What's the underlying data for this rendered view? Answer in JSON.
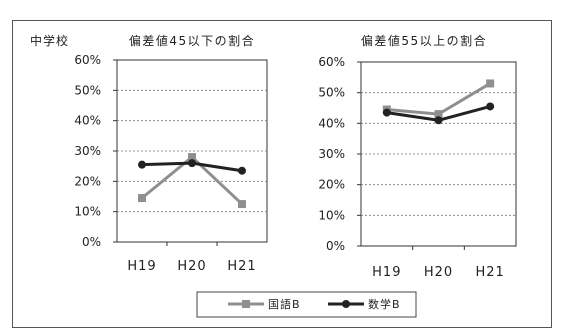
{
  "school_label": "中学校",
  "chart_data": [
    {
      "type": "line",
      "title": "偏差値45以下の割合",
      "categories": [
        "H19",
        "H20",
        "H21"
      ],
      "ylim": [
        0,
        60
      ],
      "yticks": [
        "0%",
        "10%",
        "20%",
        "30%",
        "40%",
        "50%",
        "60%"
      ],
      "grid": true,
      "series": [
        {
          "name": "国語B",
          "values": [
            14.5,
            28,
            12.5
          ],
          "color": "#8f8f8f",
          "marker": "square"
        },
        {
          "name": "数学B",
          "values": [
            25.5,
            26,
            23.5
          ],
          "color": "#222222",
          "marker": "circle"
        }
      ]
    },
    {
      "type": "line",
      "title": "偏差値55以上の割合",
      "categories": [
        "H19",
        "H20",
        "H21"
      ],
      "ylim": [
        0,
        60
      ],
      "yticks": [
        "0%",
        "10%",
        "20%",
        "30%",
        "40%",
        "50%",
        "60%"
      ],
      "grid": true,
      "series": [
        {
          "name": "国語B",
          "values": [
            44.5,
            43,
            53
          ],
          "color": "#8f8f8f",
          "marker": "square"
        },
        {
          "name": "数学B",
          "values": [
            43.5,
            41,
            45.5
          ],
          "color": "#222222",
          "marker": "circle"
        }
      ]
    }
  ],
  "legend": {
    "placement": "bottom",
    "items": [
      {
        "label": "国語B",
        "color": "#8f8f8f",
        "marker": "square"
      },
      {
        "label": "数学B",
        "color": "#222222",
        "marker": "circle"
      }
    ]
  }
}
